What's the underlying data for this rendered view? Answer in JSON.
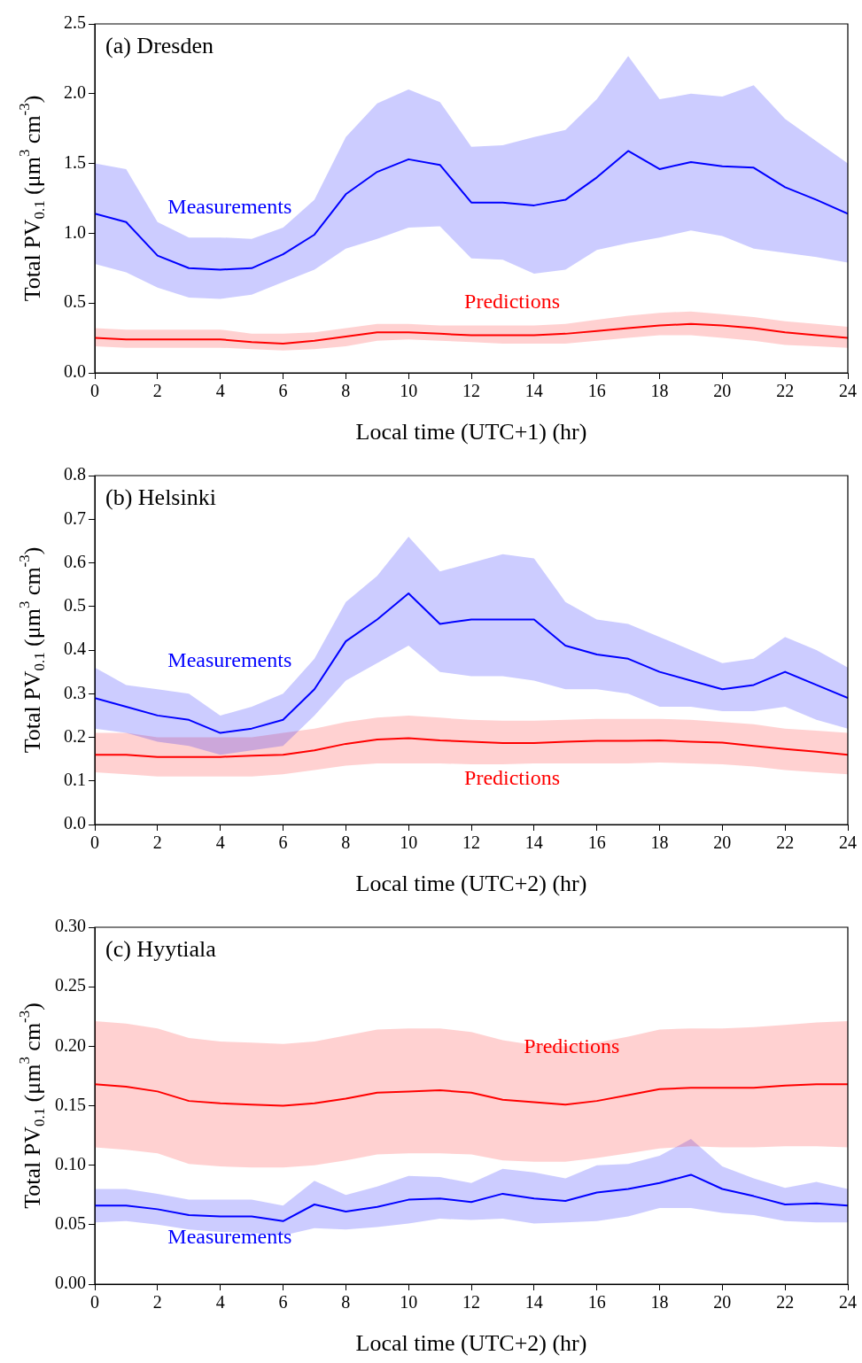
{
  "chart_data": [
    {
      "type": "line",
      "title": "(a) Dresden",
      "xlabel": "Local time (UTC+1) (hr)",
      "ylabel": "Total PV$_{0.1}$ (μm$^{3}$ cm$^{-3}$)",
      "x": [
        0,
        1,
        2,
        3,
        4,
        5,
        6,
        7,
        8,
        9,
        10,
        11,
        12,
        13,
        14,
        15,
        16,
        17,
        18,
        19,
        20,
        21,
        22,
        23,
        24
      ],
      "xlim": [
        0,
        24
      ],
      "xticks": [
        0,
        2,
        4,
        6,
        8,
        10,
        12,
        14,
        16,
        18,
        20,
        22,
        24
      ],
      "ylim": [
        0,
        2.5
      ],
      "yticks": [
        {
          "value": 0,
          "label": "0.0"
        },
        0.5,
        {
          "value": 1,
          "label": "1.0"
        },
        1.5,
        {
          "value": 2,
          "label": "2.0"
        },
        2.5
      ],
      "legend": false,
      "grid": false,
      "series": [
        {
          "name": "Measurements",
          "color": "#0000ff",
          "values": [
            1.14,
            1.08,
            0.84,
            0.75,
            0.74,
            0.75,
            0.85,
            0.99,
            1.28,
            1.44,
            1.53,
            1.49,
            1.22,
            1.22,
            1.2,
            1.24,
            1.4,
            1.59,
            1.46,
            1.51,
            1.48,
            1.47,
            1.33,
            1.24,
            1.14
          ],
          "upper": [
            1.5,
            1.46,
            1.08,
            0.97,
            0.97,
            0.96,
            1.04,
            1.24,
            1.69,
            1.93,
            2.03,
            1.94,
            1.62,
            1.63,
            1.69,
            1.74,
            1.96,
            2.27,
            1.96,
            2,
            1.98,
            2.06,
            1.82,
            1.66,
            1.5
          ],
          "lower": [
            0.78,
            0.72,
            0.61,
            0.54,
            0.53,
            0.56,
            0.65,
            0.74,
            0.89,
            0.96,
            1.04,
            1.05,
            0.82,
            0.81,
            0.71,
            0.74,
            0.88,
            0.93,
            0.97,
            1.02,
            0.98,
            0.89,
            0.86,
            0.83,
            0.79
          ]
        },
        {
          "name": "Predictions",
          "color": "#ff0000",
          "values": [
            0.25,
            0.24,
            0.24,
            0.24,
            0.24,
            0.22,
            0.21,
            0.23,
            0.26,
            0.29,
            0.29,
            0.28,
            0.27,
            0.27,
            0.27,
            0.28,
            0.3,
            0.32,
            0.34,
            0.35,
            0.34,
            0.32,
            0.29,
            0.27,
            0.25
          ],
          "upper": [
            0.32,
            0.31,
            0.31,
            0.31,
            0.31,
            0.28,
            0.28,
            0.29,
            0.32,
            0.35,
            0.35,
            0.34,
            0.34,
            0.34,
            0.34,
            0.35,
            0.38,
            0.41,
            0.43,
            0.44,
            0.42,
            0.4,
            0.37,
            0.35,
            0.33
          ],
          "lower": [
            0.19,
            0.18,
            0.18,
            0.18,
            0.18,
            0.17,
            0.16,
            0.17,
            0.19,
            0.23,
            0.24,
            0.23,
            0.22,
            0.21,
            0.21,
            0.21,
            0.23,
            0.25,
            0.27,
            0.27,
            0.25,
            0.23,
            0.2,
            0.19,
            0.18
          ]
        }
      ]
    },
    {
      "type": "line",
      "title": "(b) Helsinki",
      "xlabel": "Local time (UTC+2) (hr)",
      "ylabel": "Total PV$_{0.1}$ (μm$^{3}$ cm$^{-3}$)",
      "x": [
        0,
        1,
        2,
        3,
        4,
        5,
        6,
        7,
        8,
        9,
        10,
        11,
        12,
        13,
        14,
        15,
        16,
        17,
        18,
        19,
        20,
        21,
        22,
        23,
        24
      ],
      "xlim": [
        0,
        24
      ],
      "xticks": [
        0,
        2,
        4,
        6,
        8,
        10,
        12,
        14,
        16,
        18,
        20,
        22,
        24
      ],
      "ylim": [
        0,
        0.8
      ],
      "yticks": [
        {
          "value": 0,
          "label": "0.0"
        },
        0.1,
        0.2,
        0.3,
        0.4,
        0.5,
        0.6,
        0.7,
        0.8
      ],
      "legend": false,
      "grid": false,
      "series": [
        {
          "name": "Measurements",
          "color": "#0000ff",
          "values": [
            0.29,
            0.27,
            0.25,
            0.24,
            0.21,
            0.22,
            0.24,
            0.31,
            0.42,
            0.47,
            0.53,
            0.46,
            0.47,
            0.47,
            0.47,
            0.41,
            0.39,
            0.38,
            0.35,
            0.33,
            0.31,
            0.32,
            0.35,
            0.32,
            0.29
          ],
          "upper": [
            0.36,
            0.32,
            0.31,
            0.3,
            0.25,
            0.27,
            0.3,
            0.38,
            0.51,
            0.57,
            0.66,
            0.58,
            0.6,
            0.62,
            0.61,
            0.51,
            0.47,
            0.46,
            0.43,
            0.4,
            0.37,
            0.38,
            0.43,
            0.4,
            0.36
          ],
          "lower": [
            0.22,
            0.21,
            0.19,
            0.18,
            0.16,
            0.17,
            0.18,
            0.25,
            0.33,
            0.37,
            0.41,
            0.35,
            0.34,
            0.34,
            0.33,
            0.31,
            0.31,
            0.3,
            0.27,
            0.27,
            0.26,
            0.26,
            0.27,
            0.24,
            0.22
          ]
        },
        {
          "name": "Predictions",
          "color": "#ff0000",
          "values": [
            0.16,
            0.16,
            0.155,
            0.155,
            0.155,
            0.158,
            0.16,
            0.17,
            0.185,
            0.195,
            0.198,
            0.193,
            0.19,
            0.187,
            0.187,
            0.19,
            0.192,
            0.192,
            0.193,
            0.19,
            0.188,
            0.18,
            0.173,
            0.167,
            0.16
          ],
          "upper": [
            0.21,
            0.21,
            0.2,
            0.2,
            0.2,
            0.2,
            0.21,
            0.22,
            0.235,
            0.245,
            0.25,
            0.245,
            0.24,
            0.238,
            0.238,
            0.24,
            0.242,
            0.242,
            0.242,
            0.24,
            0.235,
            0.23,
            0.22,
            0.215,
            0.21
          ],
          "lower": [
            0.12,
            0.115,
            0.11,
            0.11,
            0.11,
            0.11,
            0.115,
            0.125,
            0.135,
            0.14,
            0.14,
            0.14,
            0.138,
            0.138,
            0.14,
            0.14,
            0.14,
            0.14,
            0.142,
            0.14,
            0.138,
            0.133,
            0.125,
            0.12,
            0.115
          ]
        }
      ]
    },
    {
      "type": "line",
      "title": "(c) Hyytiala",
      "xlabel": "Local time (UTC+2) (hr)",
      "ylabel": "Total PV$_{0.1}$ (μm$^{3}$ cm$^{-3}$)",
      "x": [
        0,
        1,
        2,
        3,
        4,
        5,
        6,
        7,
        8,
        9,
        10,
        11,
        12,
        13,
        14,
        15,
        16,
        17,
        18,
        19,
        20,
        21,
        22,
        23,
        24
      ],
      "xlim": [
        0,
        24
      ],
      "xticks": [
        0,
        2,
        4,
        6,
        8,
        10,
        12,
        14,
        16,
        18,
        20,
        22,
        24
      ],
      "ylim": [
        0,
        0.3
      ],
      "yticks": [
        {
          "value": 0,
          "label": "0.00"
        },
        0.05,
        {
          "value": 0.1,
          "label": "0.10"
        },
        0.15,
        {
          "value": 0.2,
          "label": "0.20"
        },
        0.25,
        {
          "value": 0.3,
          "label": "0.30"
        }
      ],
      "legend": false,
      "grid": false,
      "series": [
        {
          "name": "Predictions",
          "color": "#ff0000",
          "values": [
            0.168,
            0.166,
            0.162,
            0.154,
            0.152,
            0.151,
            0.15,
            0.152,
            0.156,
            0.161,
            0.162,
            0.163,
            0.161,
            0.155,
            0.153,
            0.151,
            0.154,
            0.159,
            0.164,
            0.165,
            0.165,
            0.165,
            0.167,
            0.168,
            0.168
          ],
          "upper": [
            0.221,
            0.219,
            0.215,
            0.207,
            0.204,
            0.203,
            0.202,
            0.204,
            0.209,
            0.214,
            0.215,
            0.215,
            0.212,
            0.205,
            0.201,
            0.2,
            0.203,
            0.208,
            0.214,
            0.215,
            0.215,
            0.216,
            0.218,
            0.22,
            0.221
          ],
          "lower": [
            0.115,
            0.113,
            0.11,
            0.101,
            0.099,
            0.098,
            0.098,
            0.1,
            0.104,
            0.109,
            0.11,
            0.11,
            0.109,
            0.104,
            0.103,
            0.103,
            0.106,
            0.11,
            0.114,
            0.116,
            0.115,
            0.115,
            0.116,
            0.116,
            0.115
          ]
        },
        {
          "name": "Measurements",
          "color": "#0000ff",
          "values": [
            0.066,
            0.066,
            0.063,
            0.058,
            0.057,
            0.057,
            0.053,
            0.067,
            0.061,
            0.065,
            0.071,
            0.072,
            0.069,
            0.076,
            0.072,
            0.07,
            0.077,
            0.08,
            0.085,
            0.092,
            0.08,
            0.074,
            0.067,
            0.068,
            0.066
          ],
          "upper": [
            0.08,
            0.08,
            0.076,
            0.071,
            0.071,
            0.071,
            0.066,
            0.087,
            0.075,
            0.082,
            0.091,
            0.09,
            0.085,
            0.097,
            0.094,
            0.089,
            0.1,
            0.101,
            0.108,
            0.122,
            0.099,
            0.089,
            0.081,
            0.086,
            0.08
          ],
          "lower": [
            0.052,
            0.053,
            0.05,
            0.046,
            0.044,
            0.043,
            0.041,
            0.047,
            0.046,
            0.048,
            0.051,
            0.055,
            0.054,
            0.055,
            0.051,
            0.052,
            0.053,
            0.057,
            0.064,
            0.064,
            0.06,
            0.058,
            0.053,
            0.052,
            0.052
          ]
        }
      ]
    }
  ]
}
